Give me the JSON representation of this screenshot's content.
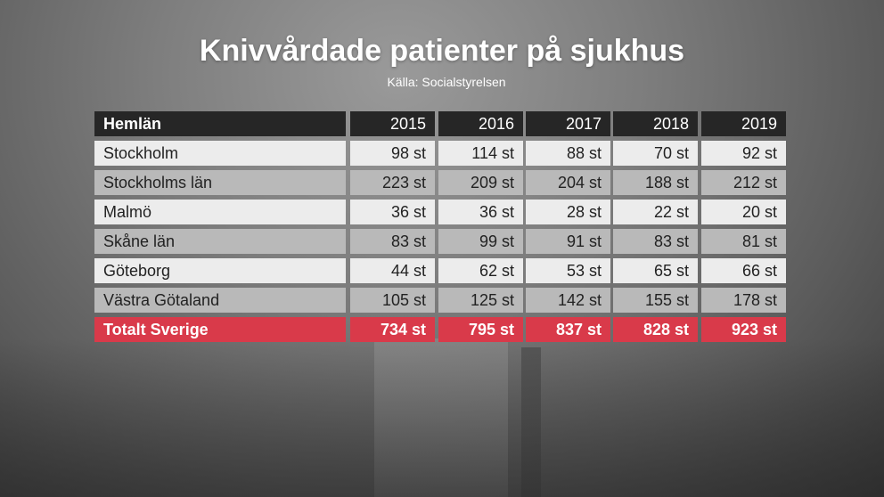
{
  "title": "Knivvårdade patienter på sjukhus",
  "subtitle": "Källa: Socialstyrelsen",
  "colors": {
    "header_bg": "#262626",
    "row_light": "#ececec",
    "row_mid": "#b9b9b9",
    "total_bg": "#d93a4a"
  },
  "chart_data": {
    "type": "table",
    "title": "Knivvårdade patienter på sjukhus",
    "subtitle": "Källa: Socialstyrelsen",
    "header_label": "Hemlän",
    "columns": [
      "2015",
      "2016",
      "2017",
      "2018",
      "2019"
    ],
    "unit": "st",
    "rows": [
      {
        "label": "Stockholm",
        "values": [
          98,
          114,
          88,
          70,
          92
        ],
        "display": [
          "98 st",
          "114 st",
          "88 st",
          "70 st",
          "92 st"
        ]
      },
      {
        "label": "Stockholms län",
        "values": [
          223,
          209,
          204,
          188,
          212
        ],
        "display": [
          "223 st",
          "209 st",
          "204 st",
          "188 st",
          "212 st"
        ]
      },
      {
        "label": "Malmö",
        "values": [
          36,
          36,
          28,
          22,
          20
        ],
        "display": [
          "36 st",
          "36 st",
          "28 st",
          "22 st",
          "20 st"
        ]
      },
      {
        "label": "Skåne län",
        "values": [
          83,
          99,
          91,
          83,
          81
        ],
        "display": [
          "83 st",
          "99 st",
          "91 st",
          "83 st",
          "81 st"
        ]
      },
      {
        "label": "Göteborg",
        "values": [
          44,
          62,
          53,
          65,
          66
        ],
        "display": [
          "44 st",
          "62 st",
          "53 st",
          "65 st",
          "66 st"
        ]
      },
      {
        "label": "Västra Götaland",
        "values": [
          105,
          125,
          142,
          155,
          178
        ],
        "display": [
          "105 st",
          "125 st",
          "142 st",
          "155 st",
          "178 st"
        ]
      }
    ],
    "total": {
      "label": "Totalt Sverige",
      "values": [
        734,
        795,
        837,
        828,
        923
      ],
      "display": [
        "734 st",
        "795 st",
        "837 st",
        "828 st",
        "923 st"
      ]
    }
  }
}
